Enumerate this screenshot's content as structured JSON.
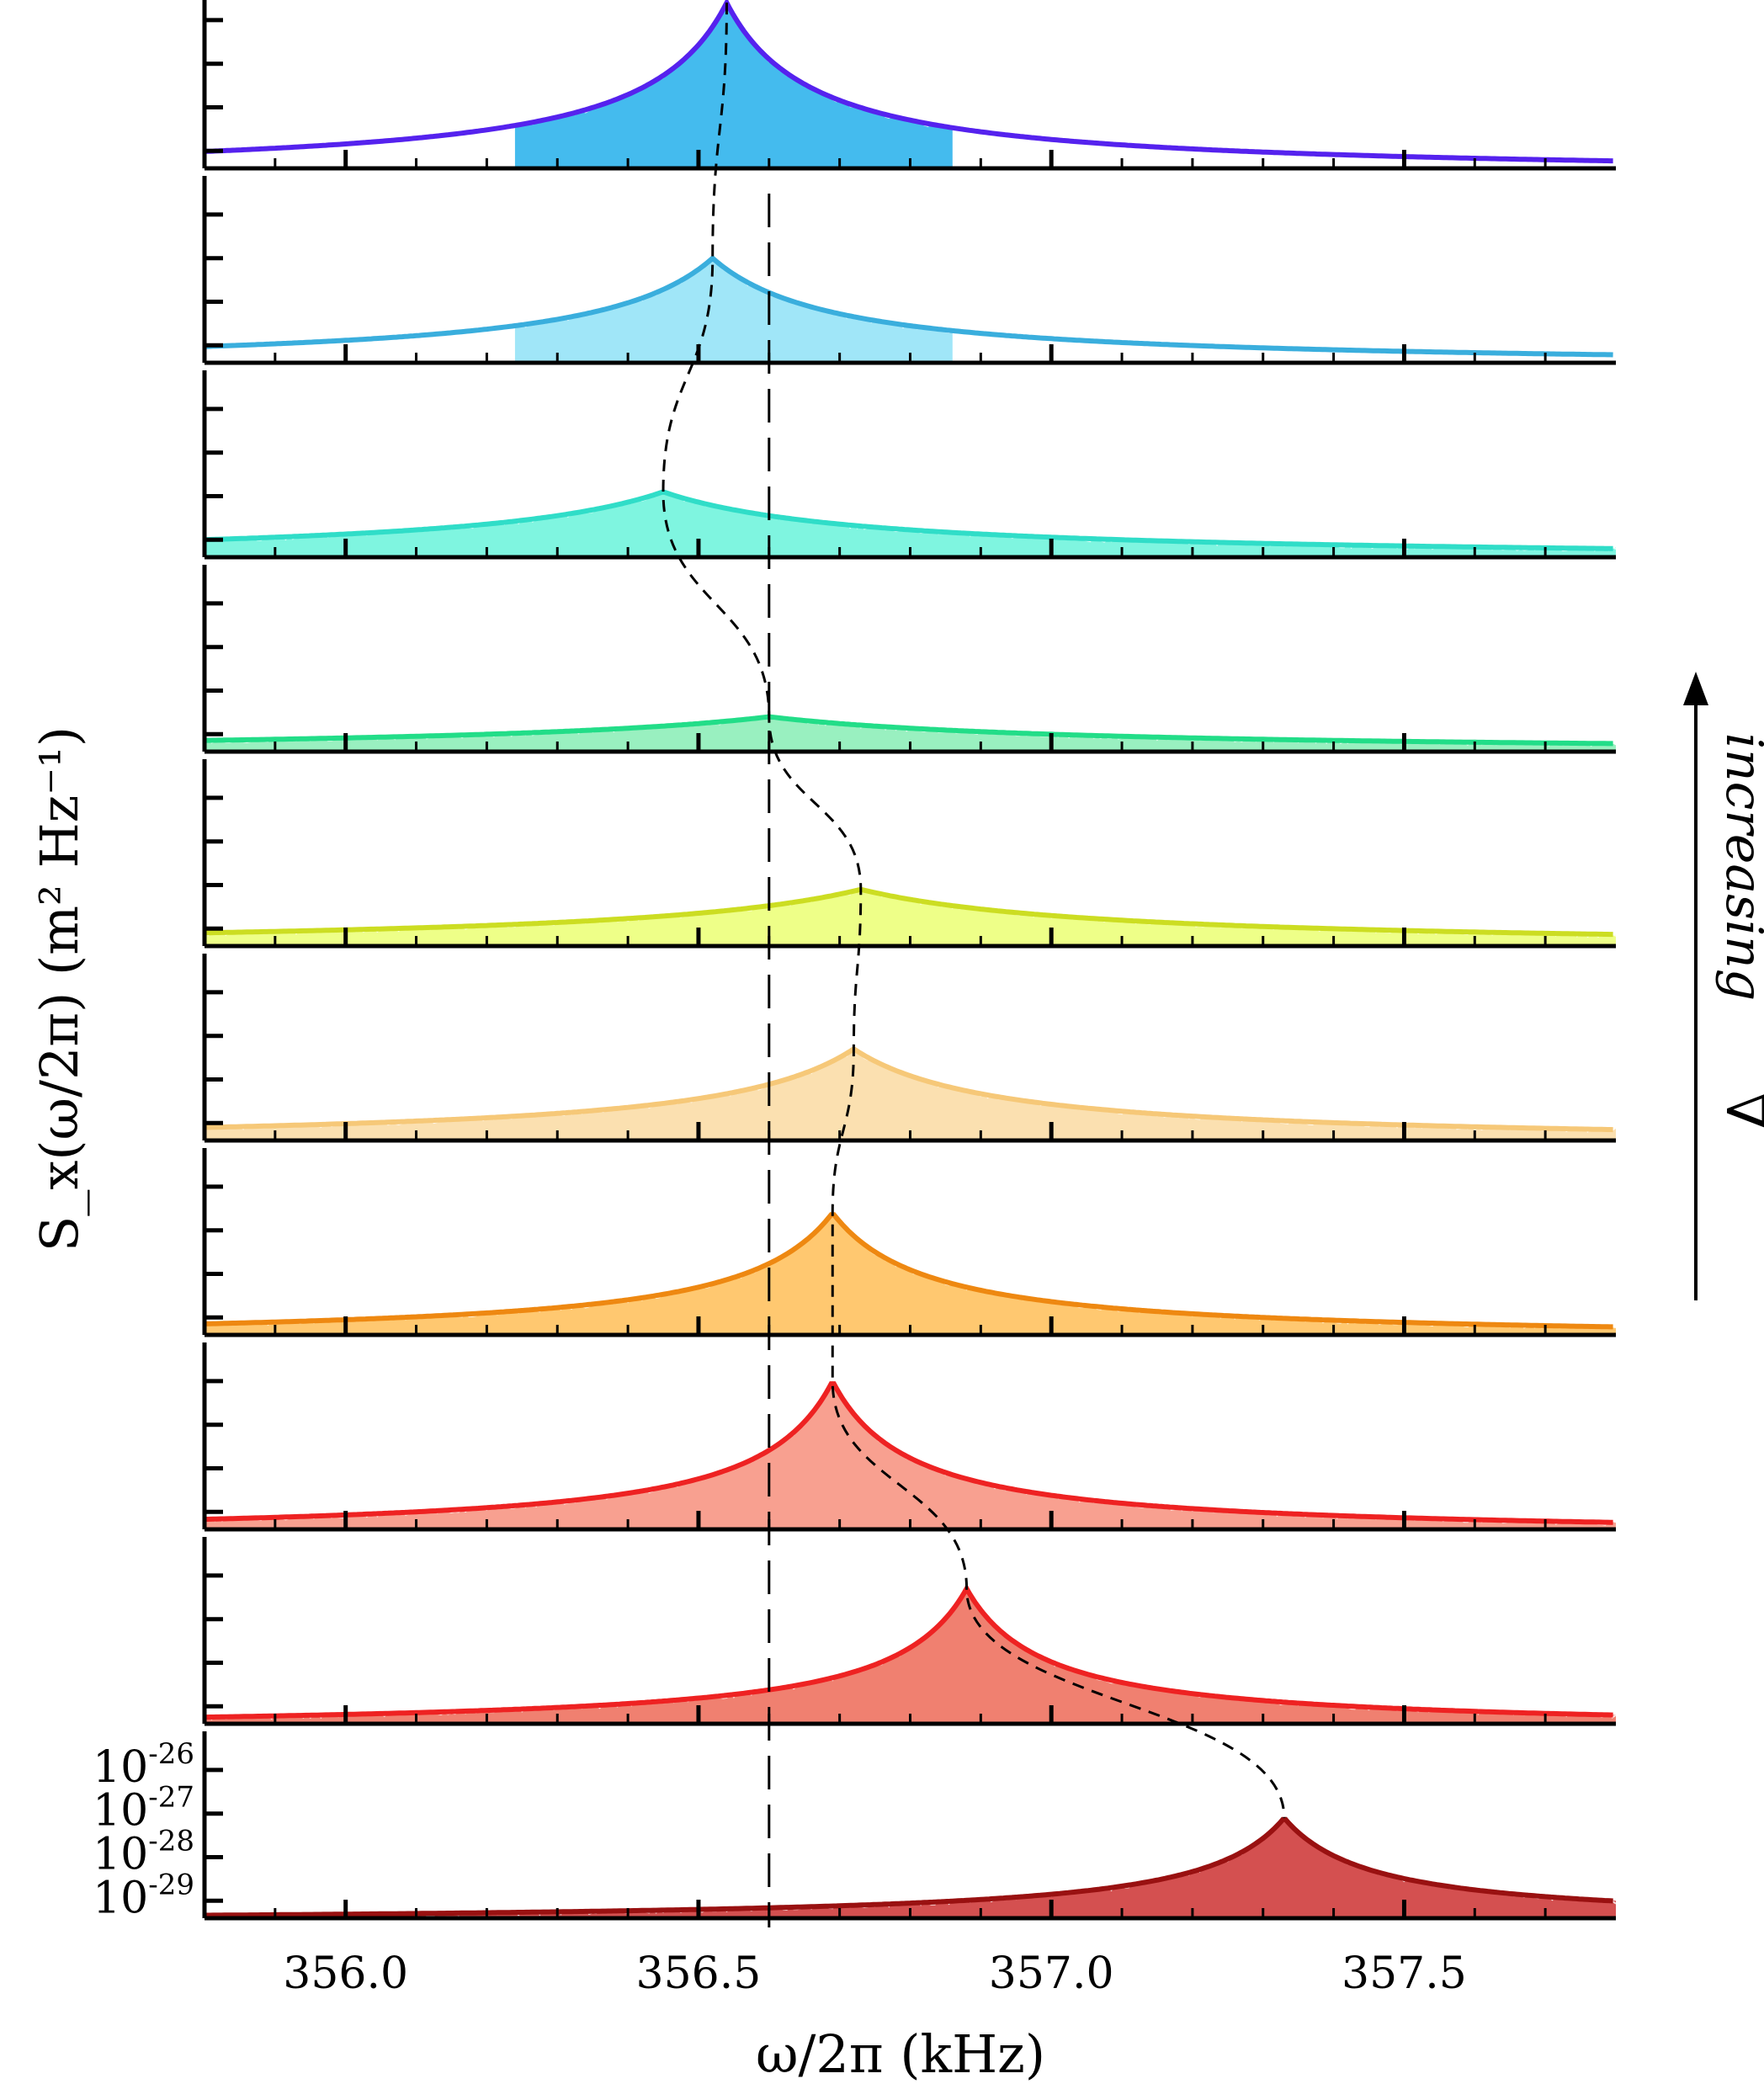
{
  "chart_data": {
    "type": "line",
    "xlabel": "ω/2π (kHz)",
    "ylabel": "S_x(ω/2π) (m² Hz⁻¹)",
    "xlim": [
      355.8,
      357.8
    ],
    "xticks": [
      "356.0",
      "356.5",
      "357.0",
      "357.5"
    ],
    "ylim_log": [
      -29.4,
      -25.5
    ],
    "yticks_bottom_panel": [
      "10-26",
      "10-27",
      "10-28",
      "10-29"
    ],
    "y_scale": "log",
    "reference_line_x": 356.6,
    "annotation": "increasing",
    "annotation_symbol": "∇",
    "panel_order": "top-to-bottom",
    "series": [
      {
        "peak_x": 356.54,
        "peak_log_y": -25.6,
        "width_khz": 0.2,
        "color": "#5522ee",
        "fill": "#44bbee",
        "fill_range": [
          356.24,
          356.86
        ]
      },
      {
        "peak_x": 356.52,
        "peak_log_y": -27.0,
        "width_khz": 0.28,
        "color": "#3aaedd",
        "fill": "#a0e6f8",
        "fill_range": [
          356.24,
          356.86
        ]
      },
      {
        "peak_x": 356.45,
        "peak_log_y": -27.9,
        "width_khz": 0.45,
        "color": "#30ddc8",
        "fill": "#7ff5e0"
      },
      {
        "peak_x": 356.6,
        "peak_log_y": -28.6,
        "width_khz": 0.7,
        "color": "#22dd88",
        "fill": "#99f0c0"
      },
      {
        "peak_x": 356.73,
        "peak_log_y": -28.1,
        "width_khz": 0.55,
        "color": "#ccdd22",
        "fill": "#eeff88"
      },
      {
        "peak_x": 356.72,
        "peak_log_y": -27.3,
        "width_khz": 0.33,
        "color": "#f6c878",
        "fill": "#fbe0b0"
      },
      {
        "peak_x": 356.69,
        "peak_log_y": -26.6,
        "width_khz": 0.22,
        "color": "#ee8811",
        "fill": "#ffc870"
      },
      {
        "peak_x": 356.69,
        "peak_log_y": -26.0,
        "width_khz": 0.18,
        "color": "#ee2222",
        "fill": "#f8a090"
      },
      {
        "peak_x": 356.88,
        "peak_log_y": -26.3,
        "width_khz": 0.18,
        "color": "#ee2222",
        "fill": "#f08070"
      },
      {
        "peak_x": 357.33,
        "peak_log_y": -27.1,
        "width_khz": 0.2,
        "color": "#991111",
        "fill": "#d45050"
      }
    ]
  }
}
